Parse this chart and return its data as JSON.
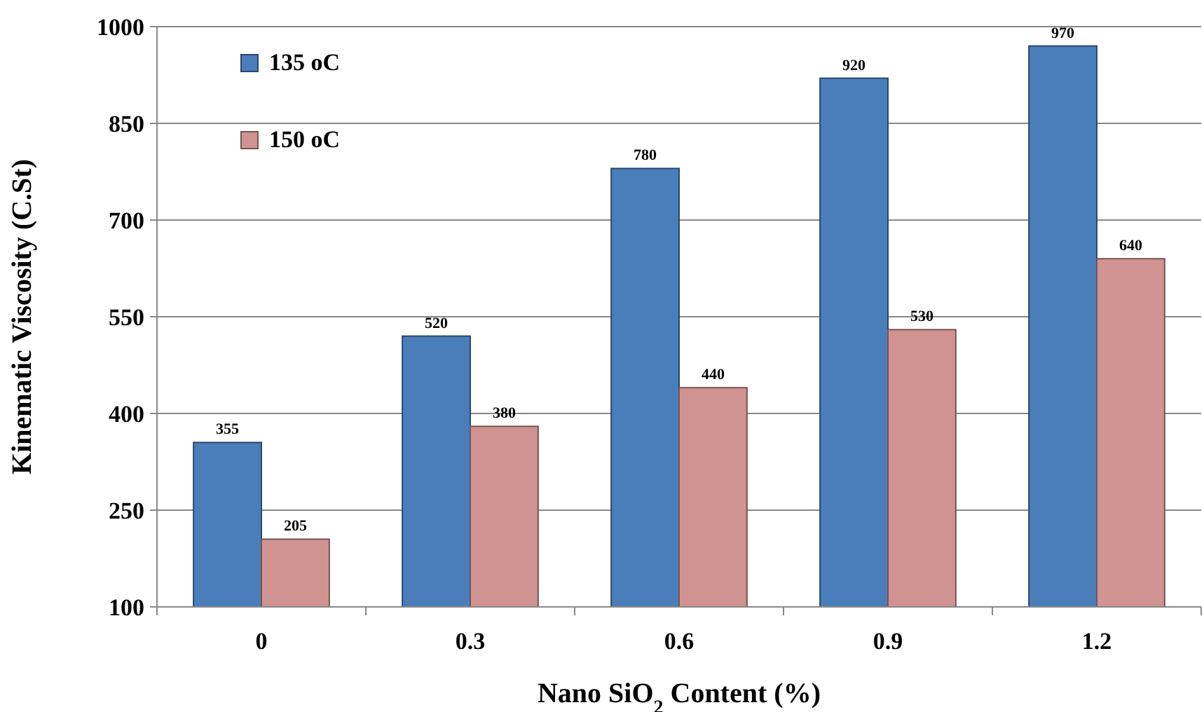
{
  "chart_data": {
    "type": "bar",
    "xlabel": "Nano SiO$_{2}$ Content (%)",
    "ylabel": "Kinematic Viscosity (C.St)",
    "categories": [
      "0",
      "0.3",
      "0.6",
      "0.9",
      "1.2"
    ],
    "series": [
      {
        "name": "135 oC",
        "color": "#4a7ebb",
        "values": [
          355,
          520,
          780,
          920,
          970
        ]
      },
      {
        "name": "150 oC",
        "color": "#d19391",
        "values": [
          205,
          380,
          440,
          530,
          640
        ]
      }
    ],
    "ylim": [
      100,
      1000
    ],
    "yticks": [
      100,
      250,
      400,
      550,
      700,
      850,
      1000
    ],
    "grid": "y",
    "legend": "top left",
    "data_labels": true
  }
}
